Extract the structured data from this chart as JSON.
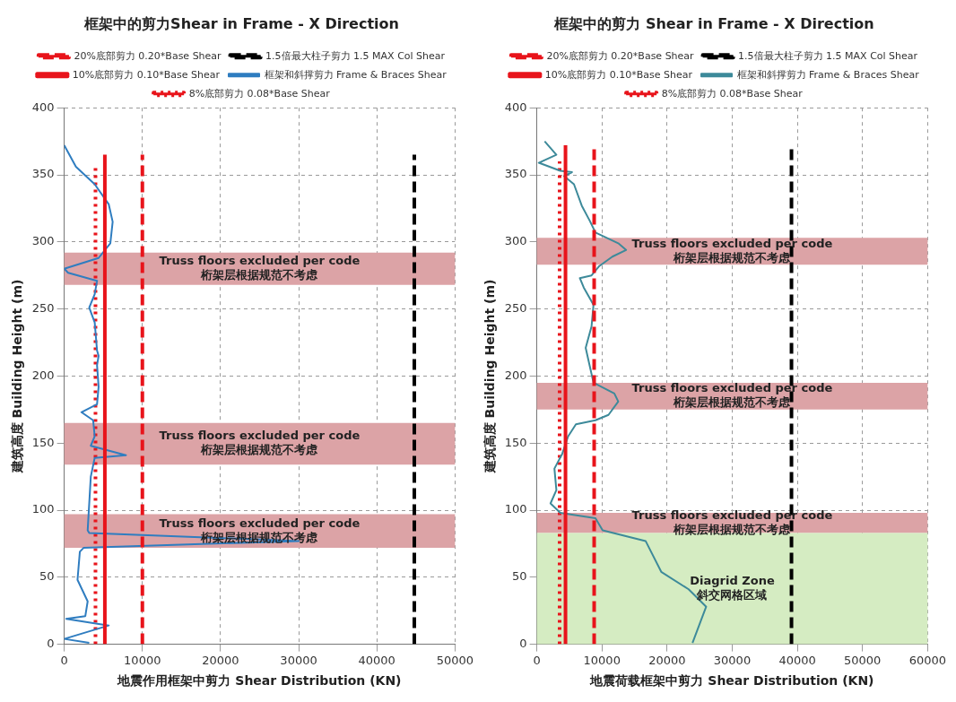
{
  "chart_data": [
    {
      "type": "line",
      "title": "框架中的剪力Shear in Frame - X Direction",
      "xlabel": "地震作用框架中剪力 Shear Distribution (KN)",
      "ylabel": "建筑高度 Building Height (m)",
      "xlim": [
        0,
        50000
      ],
      "xticks": [
        0,
        10000,
        20000,
        30000,
        40000,
        50000
      ],
      "ylim": [
        0,
        400
      ],
      "yticks": [
        0,
        50,
        100,
        150,
        200,
        250,
        300,
        350,
        400
      ],
      "grid": true,
      "legend": "top",
      "series": [
        {
          "name": "20%底部剪力 0.20*Base Shear",
          "color": "#e8141b",
          "line_style": "dashed",
          "x": [
            10000,
            10000
          ],
          "values": [
            0,
            365
          ]
        },
        {
          "name": "1.5倍最大柱子剪力 1.5 MAX Col Shear",
          "color": "#000000",
          "line_style": "dashed",
          "x": [
            44800,
            44800
          ],
          "values": [
            0,
            365
          ]
        },
        {
          "name": "10%底部剪力 0.10*Base Shear",
          "color": "#e8141b",
          "line_style": "solid",
          "x": [
            5200,
            5200
          ],
          "values": [
            0,
            365
          ]
        },
        {
          "name": "框架和斜撑剪力 Frame & Braces Shear",
          "color": "#2f7dc0",
          "line_style": "solid",
          "x": [
            0,
            1500,
            3900,
            5700,
            6200,
            5900,
            4400,
            0,
            500,
            4200,
            3900,
            3200,
            3900,
            4200,
            4400,
            4200,
            4400,
            4200,
            2200,
            3700,
            3900,
            3400,
            7900,
            3900,
            3400,
            3000,
            3200,
            30000,
            2500,
            2000,
            1700,
            3000,
            2700,
            250,
            5700,
            0,
            3200
          ],
          "values": [
            372,
            356,
            343,
            328,
            315,
            299,
            288,
            280,
            277,
            271,
            261,
            251,
            240,
            219,
            215,
            208,
            192,
            179,
            173,
            167,
            155,
            148,
            141,
            139,
            125,
            85,
            83,
            77,
            72,
            69,
            48,
            32,
            21,
            19,
            14,
            4,
            1
          ]
        },
        {
          "name": "8%底部剪力 0.08*Base Shear",
          "color": "#e8141b",
          "line_style": "dotted",
          "x": [
            4000,
            4000
          ],
          "values": [
            0,
            355
          ]
        }
      ],
      "bands": [
        {
          "axis": "y",
          "from": 268,
          "to": 292,
          "label": "Truss floors excluded per code\n桁架层根据规范不考虑",
          "color": "#dca3a6"
        },
        {
          "axis": "y",
          "from": 134,
          "to": 165,
          "label": "Truss floors excluded per code\n桁架层根据规范不考虑",
          "color": "#dca3a6"
        },
        {
          "axis": "y",
          "from": 72,
          "to": 97,
          "label": "Truss floors excluded per code\n桁架层根据规范不考虑",
          "color": "#dca3a6"
        }
      ]
    },
    {
      "type": "line",
      "title": "框架中的剪力 Shear in Frame - X Direction",
      "xlabel": "地震荷载框架中剪力 Shear Distribution (KN)",
      "ylabel": "建筑高度 Building Height (m)",
      "xlim": [
        0,
        60000
      ],
      "xticks": [
        0,
        10000,
        20000,
        30000,
        40000,
        50000,
        60000
      ],
      "ylim": [
        0,
        400
      ],
      "yticks": [
        0,
        50,
        100,
        150,
        200,
        250,
        300,
        350,
        400
      ],
      "grid": true,
      "legend": "top",
      "series": [
        {
          "name": "20%底部剪力 0.20*Base Shear",
          "color": "#e8141b",
          "line_style": "dashed",
          "x": [
            8800,
            8800
          ],
          "values": [
            0,
            372
          ]
        },
        {
          "name": "1.5倍最大柱子剪力 1.5 MAX Col Shear",
          "color": "#000000",
          "line_style": "dashed",
          "x": [
            39100,
            39100
          ],
          "values": [
            0,
            372
          ]
        },
        {
          "name": "10%底部剪力 0.10*Base Shear",
          "color": "#e8141b",
          "line_style": "solid",
          "x": [
            4400,
            4400
          ],
          "values": [
            0,
            372
          ]
        },
        {
          "name": "框架和斜撑剪力 Frame & Braces Shear",
          "color": "#3d8a9a",
          "line_style": "solid",
          "x": [
            1200,
            3000,
            300,
            3600,
            5400,
            4200,
            5700,
            6900,
            8100,
            9000,
            12500,
            13700,
            11600,
            9600,
            8400,
            6600,
            7200,
            8700,
            8400,
            7500,
            8100,
            8700,
            11900,
            12500,
            11000,
            9000,
            6000,
            4800,
            3900,
            2700,
            3000,
            2100,
            3600,
            9000,
            10100,
            16700,
            19100,
            23300,
            26000,
            23900
          ],
          "values": [
            375,
            365,
            359,
            353,
            352,
            349,
            343,
            327,
            316,
            307,
            299,
            294,
            289,
            282,
            275,
            273,
            266,
            253,
            237,
            221,
            208,
            195,
            187,
            181,
            171,
            167,
            164,
            155,
            142,
            131,
            115,
            105,
            98,
            94,
            85,
            77,
            54,
            41,
            28,
            1
          ]
        },
        {
          "name": "8%底部剪力 0.08*Base Shear",
          "color": "#e8141b",
          "line_style": "dotted",
          "x": [
            3500,
            3500
          ],
          "values": [
            0,
            360
          ]
        }
      ],
      "bands": [
        {
          "axis": "y",
          "from": 283,
          "to": 303,
          "label": "Truss floors excluded per code\n桁架层根据规范不考虑",
          "color": "#dca3a6"
        },
        {
          "axis": "y",
          "from": 175,
          "to": 195,
          "label": "Truss floors excluded per code\n桁架层根据规范不考虑",
          "color": "#dca3a6"
        },
        {
          "axis": "y",
          "from": 83,
          "to": 98,
          "label": "Truss floors excluded per code\n桁架层根据规范不考虑",
          "color": "#dca3a6"
        },
        {
          "axis": "y",
          "from": 0,
          "to": 83,
          "label": "Diagrid Zone\n斜交网格区域",
          "color": "#d5ecc2"
        }
      ]
    }
  ]
}
